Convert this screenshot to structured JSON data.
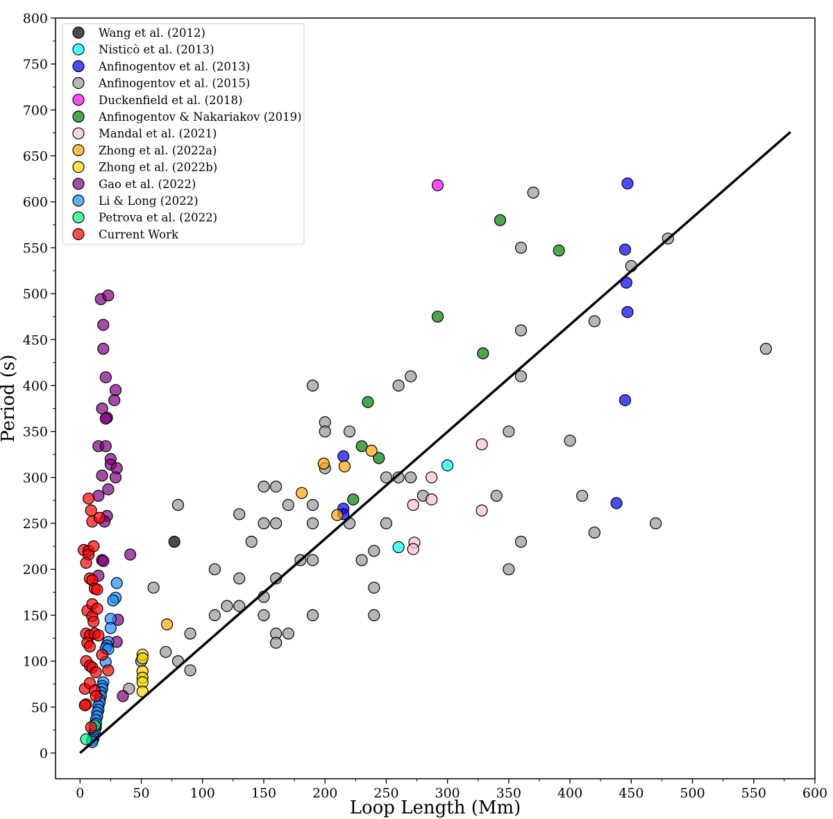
{
  "chart_data": {
    "type": "scatter",
    "title": "",
    "xlabel": "Loop Length (Mm)",
    "ylabel": "Period (s)",
    "xlim": [
      -20,
      600
    ],
    "ylim": [
      -28,
      800
    ],
    "xticks": [
      0,
      50,
      100,
      150,
      200,
      250,
      300,
      350,
      400,
      450,
      500,
      550,
      600
    ],
    "yticks": [
      0,
      50,
      100,
      150,
      200,
      250,
      300,
      350,
      400,
      450,
      500,
      550,
      600,
      650,
      700,
      750,
      800
    ],
    "xtick_labels": [
      "0",
      "50",
      "100",
      "150",
      "200",
      "250",
      "300",
      "350",
      "400",
      "450",
      "500",
      "550",
      "600"
    ],
    "ytick_labels": [
      "0",
      "50",
      "100",
      "150",
      "200",
      "250",
      "300",
      "350",
      "400",
      "450",
      "500",
      "550",
      "600",
      "650",
      "700",
      "750",
      "800"
    ],
    "grid": false,
    "legend_position": "top-left",
    "fit_line": {
      "x": [
        0,
        580
      ],
      "y": [
        0,
        676
      ],
      "color": "#000000"
    },
    "series": [
      {
        "name": "Wang et al. (2012)",
        "color": "#000000",
        "points": [
          [
            77,
            230
          ]
        ]
      },
      {
        "name": "Nisticò et al. (2013)",
        "color": "#00ffff",
        "points": [
          [
            300,
            313
          ],
          [
            260,
            224
          ]
        ]
      },
      {
        "name": "Anfinogentov et al. (2013)",
        "color": "#0000ff",
        "points": [
          [
            447,
            620
          ],
          [
            445,
            548
          ],
          [
            446,
            512
          ],
          [
            447,
            480
          ],
          [
            445,
            384
          ],
          [
            438,
            272
          ],
          [
            215,
            323
          ],
          [
            215,
            266
          ],
          [
            215,
            260
          ]
        ]
      },
      {
        "name": "Anfinogentov et al. (2015)",
        "color": "#999999",
        "points": [
          [
            370,
            610
          ],
          [
            360,
            550
          ],
          [
            360,
            460
          ],
          [
            360,
            410
          ],
          [
            480,
            560
          ],
          [
            450,
            530
          ],
          [
            420,
            470
          ],
          [
            560,
            440
          ],
          [
            400,
            340
          ],
          [
            350,
            350
          ],
          [
            340,
            280
          ],
          [
            410,
            280
          ],
          [
            420,
            240
          ],
          [
            470,
            250
          ],
          [
            360,
            230
          ],
          [
            350,
            200
          ],
          [
            190,
            400
          ],
          [
            200,
            360
          ],
          [
            200,
            350
          ],
          [
            200,
            310
          ],
          [
            220,
            350
          ],
          [
            260,
            400
          ],
          [
            270,
            410
          ],
          [
            250,
            300
          ],
          [
            260,
            300
          ],
          [
            270,
            300
          ],
          [
            280,
            280
          ],
          [
            230,
            210
          ],
          [
            240,
            220
          ],
          [
            240,
            180
          ],
          [
            240,
            150
          ],
          [
            250,
            250
          ],
          [
            220,
            250
          ],
          [
            190,
            270
          ],
          [
            190,
            250
          ],
          [
            190,
            210
          ],
          [
            180,
            210
          ],
          [
            190,
            150
          ],
          [
            170,
            270
          ],
          [
            160,
            290
          ],
          [
            150,
            290
          ],
          [
            150,
            250
          ],
          [
            160,
            250
          ],
          [
            160,
            190
          ],
          [
            150,
            170
          ],
          [
            150,
            150
          ],
          [
            140,
            230
          ],
          [
            130,
            260
          ],
          [
            130,
            190
          ],
          [
            130,
            160
          ],
          [
            120,
            160
          ],
          [
            110,
            200
          ],
          [
            110,
            150
          ],
          [
            170,
            130
          ],
          [
            160,
            130
          ],
          [
            160,
            120
          ],
          [
            80,
            270
          ],
          [
            60,
            180
          ],
          [
            90,
            130
          ],
          [
            70,
            110
          ],
          [
            80,
            100
          ],
          [
            90,
            90
          ],
          [
            50,
            100
          ],
          [
            40,
            70
          ]
        ]
      },
      {
        "name": "Duckenfield et al. (2018)",
        "color": "#ff00ff",
        "points": [
          [
            292,
            618
          ]
        ]
      },
      {
        "name": "Anfinogentov & Nakariakov (2019)",
        "color": "#008000",
        "points": [
          [
            343,
            580
          ],
          [
            391,
            547
          ],
          [
            292,
            475
          ],
          [
            329,
            435
          ],
          [
            235,
            382
          ],
          [
            230,
            334
          ],
          [
            244,
            321
          ],
          [
            223,
            276
          ]
        ]
      },
      {
        "name": "Mandal et al. (2021)",
        "color": "#ffc0cb",
        "points": [
          [
            328,
            336
          ],
          [
            287,
            300
          ],
          [
            287,
            276
          ],
          [
            272,
            270
          ],
          [
            328,
            264
          ],
          [
            273,
            229
          ],
          [
            272,
            222
          ]
        ]
      },
      {
        "name": "Zhong et al. (2022a)",
        "color": "#ffa500",
        "points": [
          [
            199,
            315
          ],
          [
            216,
            312
          ],
          [
            238,
            329
          ],
          [
            181,
            283
          ],
          [
            210,
            259
          ],
          [
            71,
            140
          ]
        ]
      },
      {
        "name": "Zhong et al. (2022b)",
        "color": "#ffd700",
        "points": [
          [
            51,
            107
          ],
          [
            51,
            103
          ],
          [
            51,
            89
          ],
          [
            51,
            82
          ],
          [
            51,
            77
          ],
          [
            51,
            67
          ]
        ]
      },
      {
        "name": "Gao et al. (2022)",
        "color": "#800080",
        "points": [
          [
            17,
            494
          ],
          [
            23,
            498
          ],
          [
            19,
            466
          ],
          [
            19,
            440
          ],
          [
            21,
            409
          ],
          [
            29,
            395
          ],
          [
            28,
            384
          ],
          [
            18,
            375
          ],
          [
            22,
            365
          ],
          [
            21,
            364
          ],
          [
            15,
            334
          ],
          [
            21,
            334
          ],
          [
            25,
            320
          ],
          [
            25,
            314
          ],
          [
            30,
            310
          ],
          [
            18,
            302
          ],
          [
            29,
            300
          ],
          [
            23,
            287
          ],
          [
            15,
            280
          ],
          [
            22,
            258
          ],
          [
            20,
            252
          ],
          [
            18,
            210
          ],
          [
            19,
            209
          ],
          [
            41,
            216
          ],
          [
            15,
            193
          ],
          [
            31,
            145
          ],
          [
            30,
            121
          ],
          [
            35,
            62
          ]
        ]
      },
      {
        "name": "Li & Long (2022)",
        "color": "#1e90ff",
        "points": [
          [
            30,
            185
          ],
          [
            29,
            169
          ],
          [
            27,
            166
          ],
          [
            25,
            146
          ],
          [
            25,
            136
          ],
          [
            23,
            121
          ],
          [
            22,
            117
          ],
          [
            21,
            114
          ],
          [
            23,
            113
          ],
          [
            21,
            99
          ],
          [
            19,
            77
          ],
          [
            18,
            73
          ],
          [
            18,
            70
          ],
          [
            17,
            66
          ],
          [
            17,
            62
          ],
          [
            16,
            58
          ],
          [
            16,
            55
          ],
          [
            15,
            51
          ],
          [
            15,
            47
          ],
          [
            14,
            44
          ],
          [
            14,
            40
          ],
          [
            13,
            36
          ],
          [
            13,
            32
          ],
          [
            13,
            28
          ],
          [
            12,
            25
          ],
          [
            12,
            22
          ],
          [
            11,
            19
          ],
          [
            11,
            16
          ],
          [
            10,
            14
          ],
          [
            10,
            12
          ]
        ]
      },
      {
        "name": "Petrova et al. (2022)",
        "color": "#00ff7f",
        "points": [
          [
            5,
            15
          ],
          [
            12,
            30
          ]
        ]
      },
      {
        "name": "Current Work",
        "color": "#ff0000",
        "points": [
          [
            7,
            277
          ],
          [
            9,
            264
          ],
          [
            10,
            252
          ],
          [
            16,
            256
          ],
          [
            3,
            221
          ],
          [
            7,
            220
          ],
          [
            7,
            216
          ],
          [
            11,
            225
          ],
          [
            5,
            207
          ],
          [
            8,
            190
          ],
          [
            10,
            188
          ],
          [
            12,
            179
          ],
          [
            14,
            178
          ],
          [
            6,
            155
          ],
          [
            10,
            162
          ],
          [
            10,
            149
          ],
          [
            11,
            143
          ],
          [
            14,
            157
          ],
          [
            5,
            130
          ],
          [
            8,
            128
          ],
          [
            12,
            130
          ],
          [
            15,
            128
          ],
          [
            6,
            120
          ],
          [
            8,
            116
          ],
          [
            18,
            107
          ],
          [
            23,
            90
          ],
          [
            5,
            100
          ],
          [
            8,
            95
          ],
          [
            10,
            93
          ],
          [
            13,
            88
          ],
          [
            4,
            70
          ],
          [
            8,
            76
          ],
          [
            5,
            53
          ],
          [
            4,
            52
          ],
          [
            12,
            68
          ],
          [
            13,
            62
          ],
          [
            9,
            28
          ]
        ]
      }
    ],
    "legend": [
      "Wang et al. (2012)",
      "Nisticò et al. (2013)",
      "Anfinogentov et al. (2013)",
      "Anfinogentov et al. (2015)",
      "Duckenfield et al. (2018)",
      "Anfinogentov & Nakariakov (2019)",
      "Mandal et al. (2021)",
      "Zhong et al. (2022a)",
      "Zhong et al. (2022b)",
      "Gao et al. (2022)",
      "Li & Long (2022)",
      "Petrova et al. (2022)",
      "Current Work"
    ]
  }
}
